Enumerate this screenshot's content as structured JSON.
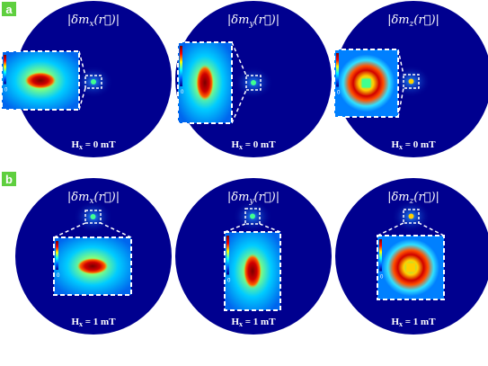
{
  "panels": [
    {
      "label": "a",
      "plots": [
        {
          "title": {
            "pre": "|δm",
            "sub": "x",
            "post": "(r⃗)|"
          },
          "field": {
            "pre": "H",
            "sub": "x",
            "post": " = 0 mT"
          },
          "colorbar_min": "0"
        },
        {
          "title": {
            "pre": "|δm",
            "sub": "y",
            "post": "(r⃗)|"
          },
          "field": {
            "pre": "H",
            "sub": "x",
            "post": " = 0 mT"
          },
          "colorbar_min": "0"
        },
        {
          "title": {
            "pre": "|δm",
            "sub": "z",
            "post": "(r⃗)|"
          },
          "field": {
            "pre": "H",
            "sub": "x",
            "post": " = 0 mT"
          },
          "colorbar_min": "0"
        }
      ]
    },
    {
      "label": "b",
      "plots": [
        {
          "title": {
            "pre": "|δm",
            "sub": "x",
            "post": "(r⃗)|"
          },
          "field": {
            "pre": "H",
            "sub": "x",
            "post": " = 1 mT"
          },
          "colorbar_min": "0"
        },
        {
          "title": {
            "pre": "|δm",
            "sub": "y",
            "post": "(r⃗)|"
          },
          "field": {
            "pre": "H",
            "sub": "x",
            "post": " = 1 mT"
          },
          "colorbar_min": "0"
        },
        {
          "title": {
            "pre": "|δm",
            "sub": "z",
            "post": "(r⃗)|"
          },
          "field": {
            "pre": "H",
            "sub": "x",
            "post": " = 1 mT"
          },
          "colorbar_min": "0"
        }
      ]
    }
  ]
}
